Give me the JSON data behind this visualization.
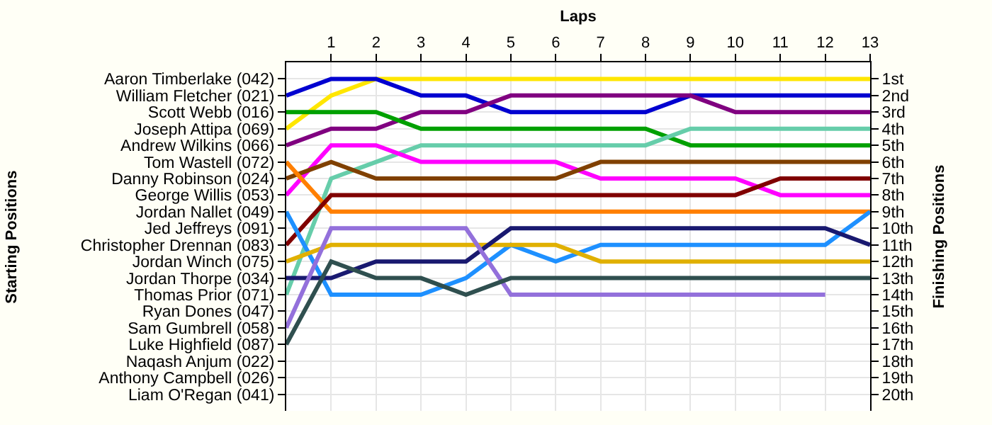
{
  "chart_data": {
    "type": "line",
    "xlabel": "Laps",
    "ylabel": "Finishing Positions",
    "annotations": [
      "Starting Positions"
    ],
    "x": [
      0,
      1,
      2,
      3,
      4,
      5,
      6,
      7,
      8,
      9,
      10,
      11,
      12,
      13
    ],
    "xlim": [
      0,
      13
    ],
    "xticks": [
      1,
      2,
      3,
      4,
      5,
      6,
      7,
      8,
      9,
      10,
      11,
      12,
      13
    ],
    "ylim": [
      21,
      0
    ],
    "yticks": [
      {
        "value": 1,
        "label": "1st"
      },
      {
        "value": 2,
        "label": "2nd"
      },
      {
        "value": 3,
        "label": "3rd"
      },
      {
        "value": 4,
        "label": "4th"
      },
      {
        "value": 5,
        "label": "5th"
      },
      {
        "value": 6,
        "label": "6th"
      },
      {
        "value": 7,
        "label": "7th"
      },
      {
        "value": 8,
        "label": "8th"
      },
      {
        "value": 9,
        "label": "9th"
      },
      {
        "value": 10,
        "label": "10th"
      },
      {
        "value": 11,
        "label": "11th"
      },
      {
        "value": 12,
        "label": "12th"
      },
      {
        "value": 13,
        "label": "13th"
      },
      {
        "value": 14,
        "label": "14th"
      },
      {
        "value": 15,
        "label": "15th"
      },
      {
        "value": 16,
        "label": "16th"
      },
      {
        "value": 17,
        "label": "17th"
      },
      {
        "value": 18,
        "label": "18th"
      },
      {
        "value": 19,
        "label": "19th"
      },
      {
        "value": 20,
        "label": "20th"
      }
    ],
    "y_categories": [
      "Aaron Timberlake (042)",
      "William Fletcher (021)",
      "Scott Webb (016)",
      "Joseph Attipa (069)",
      "Andrew Wilkins (066)",
      "Tom Wastell (072)",
      "Danny Robinson (024)",
      "George Willis (053)",
      "Jordan Nallet (049)",
      "Jed Jeffreys (091)",
      "Christopher Drennan (083)",
      "Jordan Winch (075)",
      "Jordan Thorpe (034)",
      "Thomas Prior (071)",
      "Ryan Dones (047)",
      "Sam Gumbrell (058)",
      "Luke Highfield (087)",
      "Naqash Anjum (022)",
      "Anthony Campbell (026)",
      "Liam O'Regan (041)"
    ],
    "grid": true,
    "marker": "none",
    "line_style": "solid",
    "series": [
      {
        "color": "#ffe600",
        "values": [
          4,
          2,
          1,
          1,
          1,
          1,
          1,
          1,
          1,
          1,
          1,
          1,
          1,
          1
        ]
      },
      {
        "color": "#0000d0",
        "values": [
          2,
          1,
          1,
          2,
          2,
          3,
          3,
          3,
          3,
          2,
          2,
          2,
          2,
          2
        ]
      },
      {
        "color": "#800080",
        "values": [
          5,
          4,
          4,
          3,
          3,
          2,
          2,
          2,
          2,
          2,
          3,
          3,
          3,
          3
        ]
      },
      {
        "color": "#00a000",
        "values": [
          3,
          3,
          3,
          4,
          4,
          4,
          4,
          4,
          4,
          5,
          5,
          5,
          5,
          5
        ]
      },
      {
        "color": "#66cdaa",
        "values": [
          14,
          7,
          6,
          5,
          5,
          5,
          5,
          5,
          5,
          4,
          4,
          4,
          4,
          4
        ]
      },
      {
        "color": "#ff00ff",
        "values": [
          8,
          5,
          5,
          6,
          6,
          6,
          6,
          7,
          7,
          7,
          7,
          8,
          8,
          8
        ]
      },
      {
        "color": "#804000",
        "values": [
          7,
          6,
          7,
          7,
          7,
          7,
          7,
          6,
          6,
          6,
          6,
          6,
          6,
          6
        ]
      },
      {
        "color": "#ff7f00",
        "values": [
          6,
          9,
          9,
          9,
          9,
          9,
          9,
          9,
          9,
          9,
          9,
          9,
          9,
          9
        ]
      },
      {
        "color": "#800000",
        "values": [
          11,
          8,
          8,
          8,
          8,
          8,
          8,
          8,
          8,
          8,
          8,
          7,
          7,
          7
        ]
      },
      {
        "color": "#1e90ff",
        "values": [
          9,
          14,
          14,
          14,
          13,
          11,
          12,
          11,
          11,
          11,
          11,
          11,
          11,
          9
        ]
      },
      {
        "color": "#e0b000",
        "values": [
          12,
          11,
          11,
          11,
          11,
          11,
          11,
          12,
          12,
          12,
          12,
          12,
          12,
          12
        ]
      },
      {
        "color": "#191970",
        "values": [
          13,
          13,
          12,
          12,
          12,
          10,
          10,
          10,
          10,
          10,
          10,
          10,
          10,
          11
        ]
      },
      {
        "color": "#9370db",
        "values": [
          16,
          10,
          10,
          10,
          10,
          14,
          14,
          14,
          14,
          14,
          14,
          14,
          14,
          null
        ]
      },
      {
        "color": "#2f4f4f",
        "values": [
          17,
          12,
          13,
          13,
          14,
          13,
          13,
          13,
          13,
          13,
          13,
          13,
          13,
          13
        ]
      }
    ]
  }
}
